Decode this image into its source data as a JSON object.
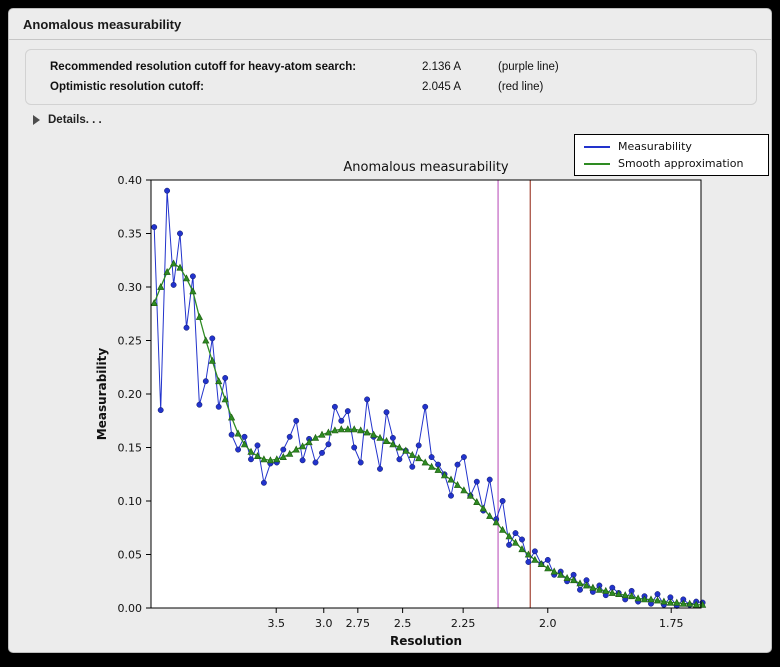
{
  "window": {
    "title": "Anomalous measurability"
  },
  "info": {
    "rows": [
      {
        "label": "Recommended resolution cutoff for heavy-atom search:",
        "value": "2.136 A",
        "note": "(purple line)"
      },
      {
        "label": "Optimistic resolution cutoff:",
        "value": "2.045 A",
        "note": "(red line)"
      }
    ]
  },
  "details": {
    "label": "Details. . ."
  },
  "chart_data": {
    "type": "line",
    "title": "Anomalous measurability",
    "xlabel": "Resolution",
    "ylabel": "Measurability",
    "legend_position": "upper right",
    "grid": false,
    "x_axis": {
      "scale": "inverse_square_resolution",
      "tick_labels": [
        "3.5",
        "3.0",
        "2.75",
        "2.5",
        "2.25",
        "2.0",
        "1.75"
      ],
      "tick_values": [
        3.5,
        3.0,
        2.75,
        2.5,
        2.25,
        2.0,
        1.75
      ],
      "range_dstar_sq": [
        0.004,
        0.345
      ]
    },
    "y_axis": {
      "tick_labels": [
        "0.00",
        "0.05",
        "0.10",
        "0.15",
        "0.20",
        "0.25",
        "0.30",
        "0.35",
        "0.40"
      ],
      "range": [
        0.0,
        0.4
      ]
    },
    "x_dstar_sq": [
      0.006,
      0.01,
      0.014,
      0.018,
      0.022,
      0.026,
      0.03,
      0.034,
      0.038,
      0.042,
      0.046,
      0.05,
      0.054,
      0.058,
      0.062,
      0.066,
      0.07,
      0.074,
      0.078,
      0.082,
      0.086,
      0.09,
      0.094,
      0.098,
      0.102,
      0.106,
      0.11,
      0.114,
      0.118,
      0.122,
      0.126,
      0.13,
      0.134,
      0.138,
      0.142,
      0.146,
      0.15,
      0.154,
      0.158,
      0.162,
      0.166,
      0.17,
      0.174,
      0.178,
      0.182,
      0.186,
      0.19,
      0.194,
      0.198,
      0.202,
      0.206,
      0.21,
      0.214,
      0.218,
      0.222,
      0.226,
      0.23,
      0.234,
      0.238,
      0.242,
      0.246,
      0.25,
      0.254,
      0.258,
      0.262,
      0.266,
      0.27,
      0.274,
      0.278,
      0.282,
      0.286,
      0.29,
      0.294,
      0.298,
      0.302,
      0.306,
      0.31,
      0.314,
      0.318,
      0.322,
      0.326,
      0.33,
      0.334,
      0.338,
      0.342,
      0.346
    ],
    "series": [
      {
        "name": "Measurability",
        "color": "#2233cc",
        "marker": "circle",
        "values": [
          0.356,
          0.185,
          0.39,
          0.302,
          0.35,
          0.262,
          0.31,
          0.19,
          0.212,
          0.252,
          0.188,
          0.215,
          0.162,
          0.148,
          0.16,
          0.139,
          0.152,
          0.117,
          0.135,
          0.136,
          0.148,
          0.16,
          0.175,
          0.138,
          0.158,
          0.136,
          0.145,
          0.153,
          0.188,
          0.175,
          0.184,
          0.15,
          0.136,
          0.195,
          0.16,
          0.13,
          0.183,
          0.159,
          0.139,
          0.147,
          0.132,
          0.152,
          0.188,
          0.141,
          0.134,
          0.125,
          0.105,
          0.134,
          0.141,
          0.105,
          0.118,
          0.091,
          0.12,
          0.083,
          0.1,
          0.059,
          0.07,
          0.064,
          0.043,
          0.053,
          0.041,
          0.045,
          0.031,
          0.034,
          0.025,
          0.031,
          0.017,
          0.026,
          0.015,
          0.021,
          0.012,
          0.019,
          0.014,
          0.008,
          0.016,
          0.006,
          0.011,
          0.004,
          0.013,
          0.003,
          0.01,
          0.002,
          0.008,
          0.003,
          0.006,
          0.005
        ]
      },
      {
        "name": "Smooth approximation",
        "color": "#2e8b22",
        "marker": "triangle_up",
        "values": [
          0.285,
          0.3,
          0.314,
          0.322,
          0.318,
          0.308,
          0.296,
          0.272,
          0.25,
          0.231,
          0.212,
          0.195,
          0.178,
          0.163,
          0.153,
          0.146,
          0.142,
          0.139,
          0.138,
          0.139,
          0.141,
          0.144,
          0.148,
          0.151,
          0.155,
          0.159,
          0.162,
          0.164,
          0.166,
          0.167,
          0.167,
          0.167,
          0.166,
          0.164,
          0.162,
          0.159,
          0.156,
          0.153,
          0.15,
          0.147,
          0.143,
          0.14,
          0.136,
          0.132,
          0.129,
          0.124,
          0.12,
          0.115,
          0.11,
          0.105,
          0.099,
          0.093,
          0.086,
          0.08,
          0.073,
          0.067,
          0.061,
          0.055,
          0.05,
          0.045,
          0.041,
          0.037,
          0.034,
          0.031,
          0.028,
          0.026,
          0.023,
          0.021,
          0.019,
          0.017,
          0.016,
          0.014,
          0.013,
          0.012,
          0.011,
          0.009,
          0.008,
          0.008,
          0.007,
          0.006,
          0.005,
          0.005,
          0.004,
          0.004,
          0.003,
          0.003
        ]
      }
    ],
    "vlines": [
      {
        "name": "recommended-cutoff",
        "resolution_A": 2.136,
        "color": "#bb55bb",
        "label": "purple line"
      },
      {
        "name": "optimistic-cutoff",
        "resolution_A": 2.045,
        "color": "#993322",
        "label": "red line"
      }
    ]
  }
}
